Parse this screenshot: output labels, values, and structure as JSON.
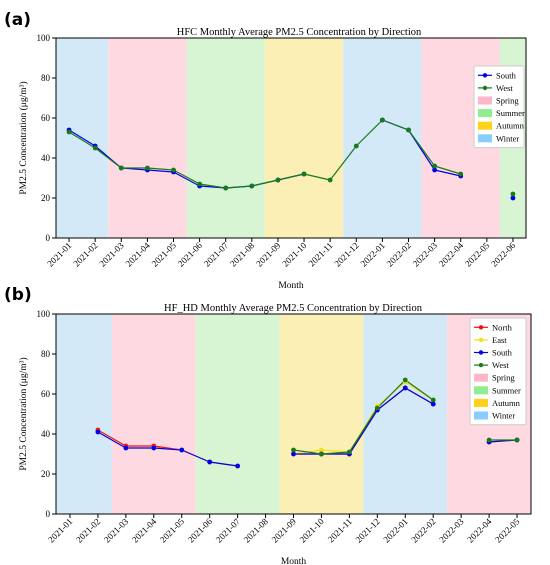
{
  "chart_data": [
    {
      "panel_label": "(a)",
      "type": "line",
      "title": "HFC Monthly Average PM2.5 Concentration by Direction",
      "xlabel": "Month",
      "ylabel": "PM2.5 Concentration (μg/m³)",
      "ylim": [
        0,
        100
      ],
      "yticks": [
        0,
        20,
        40,
        60,
        80,
        100
      ],
      "categories": [
        "2021-01",
        "2021-02",
        "2021-03",
        "2021-04",
        "2021-05",
        "2021-06",
        "2021-07",
        "2021-08",
        "2021-09",
        "2021-10",
        "2021-11",
        "2021-12",
        "2022-01",
        "2022-02",
        "2022-03",
        "2022-04",
        "2022-05",
        "2022-06"
      ],
      "grid": false,
      "legend_position": "right",
      "series": [
        {
          "name": "South",
          "color": "#0000ee",
          "values": [
            54,
            46,
            35,
            34,
            33,
            26,
            25,
            26,
            29,
            32,
            null,
            null,
            59,
            54,
            34,
            31,
            null,
            20
          ]
        },
        {
          "name": "West",
          "color": "#1a7a1a",
          "values": [
            53,
            45,
            35,
            35,
            34,
            27,
            25,
            26,
            29,
            32,
            29,
            46,
            59,
            54,
            36,
            32,
            null,
            22
          ]
        }
      ],
      "season_bands": [
        {
          "season": "Winter",
          "from": -0.5,
          "to": 1.5
        },
        {
          "season": "Spring",
          "from": 1.5,
          "to": 4.5
        },
        {
          "season": "Summer",
          "from": 4.5,
          "to": 7.5
        },
        {
          "season": "Autumn",
          "from": 7.5,
          "to": 10.5
        },
        {
          "season": "Winter",
          "from": 10.5,
          "to": 13.5
        },
        {
          "season": "Spring",
          "from": 13.5,
          "to": 16.5
        },
        {
          "season": "Summer",
          "from": 16.5,
          "to": 17.5
        }
      ],
      "legend": [
        {
          "label": "South",
          "kind": "line",
          "color": "#0000ee"
        },
        {
          "label": "West",
          "kind": "line",
          "color": "#1a7a1a"
        },
        {
          "label": "Spring",
          "kind": "patch",
          "color": "#ffb6c8"
        },
        {
          "label": "Summer",
          "kind": "patch",
          "color": "#90ee90"
        },
        {
          "label": "Autumn",
          "kind": "patch",
          "color": "#ffd21a"
        },
        {
          "label": "Winter",
          "kind": "patch",
          "color": "#87cefa"
        }
      ]
    },
    {
      "panel_label": "(b)",
      "type": "line",
      "title": "HF_HD Monthly Average PM2.5 Concentration by Direction",
      "xlabel": "Month",
      "ylabel": "PM2.5 Concentration (μg/m³)",
      "ylim": [
        0,
        100
      ],
      "yticks": [
        0,
        20,
        40,
        60,
        80,
        100
      ],
      "categories": [
        "2021-01",
        "2021-02",
        "2021-03",
        "2021-04",
        "2021-05",
        "2021-06",
        "2021-07",
        "2021-08",
        "2021-09",
        "2021-10",
        "2021-11",
        "2021-12",
        "2022-01",
        "2022-02",
        "2022-03",
        "2022-04",
        "2022-05"
      ],
      "grid": false,
      "legend_position": "right",
      "series": [
        {
          "name": "North",
          "color": "#ee1111",
          "values": [
            null,
            42,
            34,
            34,
            32,
            26,
            24,
            null,
            30,
            30,
            30,
            52,
            63,
            55,
            null,
            36,
            37
          ]
        },
        {
          "name": "East",
          "color": "#f0e020",
          "values": [
            null,
            41,
            33,
            33,
            32,
            26,
            24,
            null,
            30,
            32,
            31,
            54,
            66,
            57,
            null,
            36,
            37
          ]
        },
        {
          "name": "South",
          "color": "#0000ee",
          "values": [
            null,
            41,
            33,
            33,
            32,
            26,
            24,
            null,
            30,
            30,
            30,
            52,
            63,
            55,
            null,
            36,
            37
          ]
        },
        {
          "name": "West",
          "color": "#1a7a1a",
          "values": [
            null,
            null,
            null,
            null,
            null,
            null,
            null,
            null,
            32,
            30,
            31,
            53,
            67,
            57,
            null,
            37,
            37
          ]
        }
      ],
      "season_bands": [
        {
          "season": "Winter",
          "from": -0.5,
          "to": 1.5
        },
        {
          "season": "Spring",
          "from": 1.5,
          "to": 4.5
        },
        {
          "season": "Summer",
          "from": 4.5,
          "to": 7.5
        },
        {
          "season": "Autumn",
          "from": 7.5,
          "to": 10.5
        },
        {
          "season": "Winter",
          "from": 10.5,
          "to": 13.5
        },
        {
          "season": "Spring",
          "from": 13.5,
          "to": 16.5
        }
      ],
      "legend": [
        {
          "label": "North",
          "kind": "line",
          "color": "#ee1111"
        },
        {
          "label": "East",
          "kind": "line",
          "color": "#f0e020"
        },
        {
          "label": "South",
          "kind": "line",
          "color": "#0000ee"
        },
        {
          "label": "West",
          "kind": "line",
          "color": "#1a7a1a"
        },
        {
          "label": "Spring",
          "kind": "patch",
          "color": "#ffb6c8"
        },
        {
          "label": "Summer",
          "kind": "patch",
          "color": "#90ee90"
        },
        {
          "label": "Autumn",
          "kind": "patch",
          "color": "#ffd21a"
        },
        {
          "label": "Winter",
          "kind": "patch",
          "color": "#87cefa"
        }
      ]
    }
  ],
  "season_colors": {
    "Spring": "#ffd9e2",
    "Summer": "#d8f5d3",
    "Autumn": "#fbefb6",
    "Winter": "#d4e9f7"
  }
}
